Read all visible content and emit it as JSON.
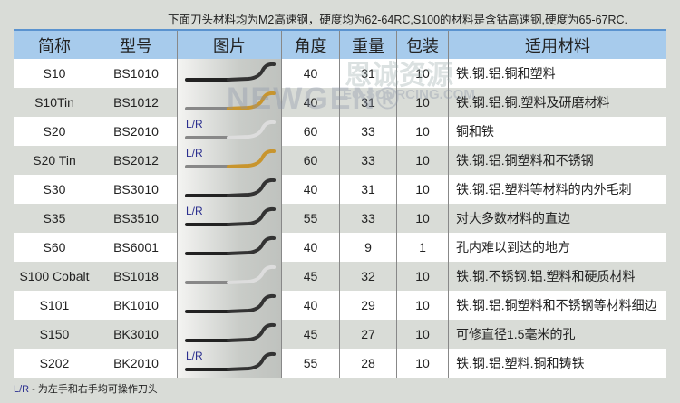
{
  "note": "下面刀头材料均为M2高速钢，硬度均为62-64RC,S100的材料是含钴高速钢,硬度为65-67RC.",
  "headers": [
    "简称",
    "型号",
    "图片",
    "角度",
    "重量",
    "包装",
    "适用材料"
  ],
  "watermark": {
    "brand": "NEWGEN®",
    "cn": "恩诚资源",
    "site": "EC-SOURCING.COM"
  },
  "rows": [
    {
      "name": "S10",
      "model": "BS1010",
      "lr": "",
      "blade": "black",
      "angle": "40",
      "weight": "31",
      "pack": "10",
      "material": "铁.钢.铝.铜和塑料"
    },
    {
      "name": "S10Tin",
      "model": "BS1012",
      "lr": "",
      "blade": "gold",
      "angle": "40",
      "weight": "31",
      "pack": "10",
      "material": "铁.钢.铝.铜.塑料及研磨材料"
    },
    {
      "name": "S20",
      "model": "BS2010",
      "lr": "L/R",
      "blade": "silver",
      "angle": "60",
      "weight": "33",
      "pack": "10",
      "material": "铜和铁"
    },
    {
      "name": "S20 Tin",
      "model": "BS2012",
      "lr": "L/R",
      "blade": "gold",
      "angle": "60",
      "weight": "33",
      "pack": "10",
      "material": "铁.钢.铝.铜塑料和不锈钢"
    },
    {
      "name": "S30",
      "model": "BS3010",
      "lr": "",
      "blade": "black",
      "angle": "40",
      "weight": "31",
      "pack": "10",
      "material": "铁.钢.铝.塑料等材料的内外毛刺"
    },
    {
      "name": "S35",
      "model": "BS3510",
      "lr": "L/R",
      "blade": "black",
      "angle": "55",
      "weight": "33",
      "pack": "10",
      "material": "对大多数材料的直边"
    },
    {
      "name": "S60",
      "model": "BS6001",
      "lr": "",
      "blade": "black",
      "angle": "40",
      "weight": "9",
      "pack": "1",
      "material": "孔内难以到达的地方"
    },
    {
      "name": "S100 Cobalt",
      "model": "BS1018",
      "lr": "",
      "blade": "silver",
      "angle": "45",
      "weight": "32",
      "pack": "10",
      "material": "铁.钢.不锈钢.铝.塑料和硬质材料"
    },
    {
      "name": "S101",
      "model": "BK1010",
      "lr": "",
      "blade": "black",
      "angle": "40",
      "weight": "29",
      "pack": "10",
      "material": "铁.钢.铝.铜塑料和不锈钢等材料细边"
    },
    {
      "name": "S150",
      "model": "BK3010",
      "lr": "",
      "blade": "black",
      "angle": "45",
      "weight": "27",
      "pack": "10",
      "material": "可修直径1.5毫米的孔"
    },
    {
      "name": "S202",
      "model": "BK2010",
      "lr": "L/R",
      "blade": "black",
      "angle": "55",
      "weight": "28",
      "pack": "10",
      "material": "铁.钢.铝.塑料.铜和铸铁"
    }
  ],
  "footer": {
    "key": "L/R",
    "text": " - 为左手和右手均可操作刀头"
  },
  "colors": {
    "header": "#a7cbec",
    "header_border": "#5b93cf",
    "lr_text": "#2b2f8f",
    "gold": "#c8952e"
  }
}
